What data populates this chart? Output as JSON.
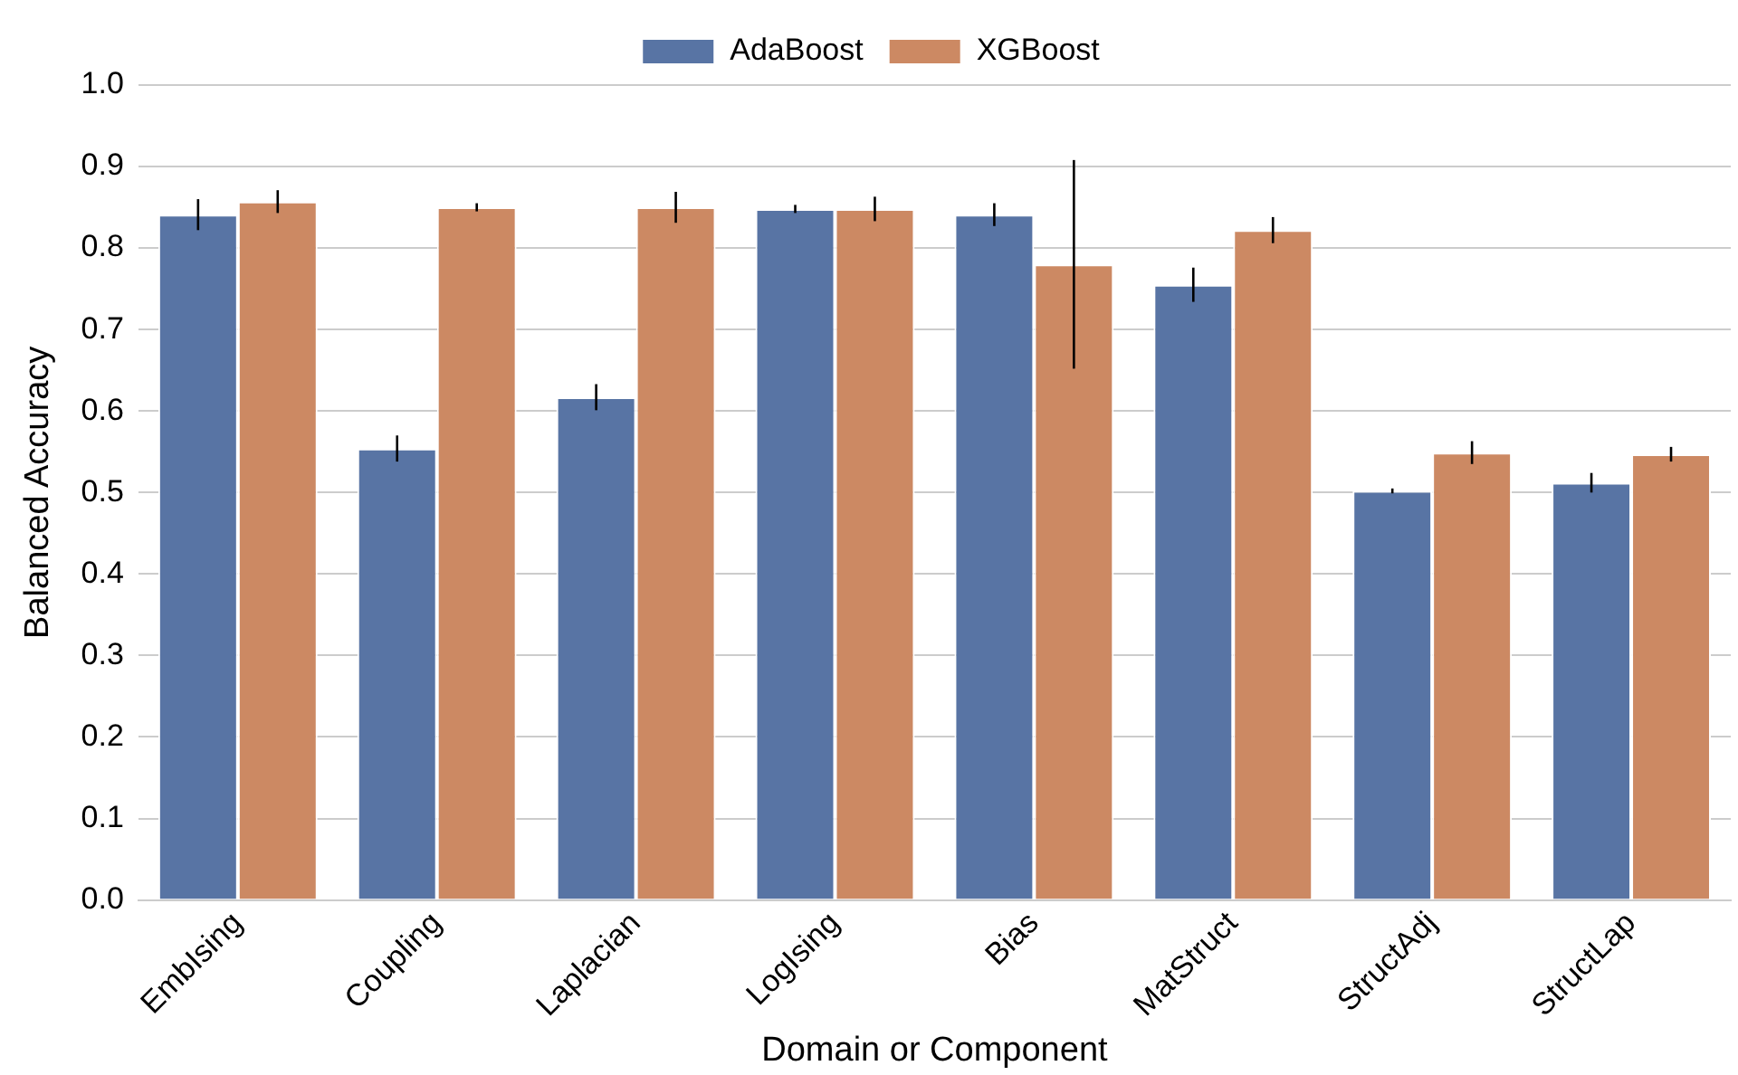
{
  "chart_data": {
    "type": "bar",
    "xlabel": "Domain or Component",
    "ylabel": "Balanced Accuracy",
    "categories": [
      "EmbIsing",
      "Coupling",
      "Laplacian",
      "LogIsing",
      "Bias",
      "MatStruct",
      "StructAdj",
      "StructLap"
    ],
    "series": [
      {
        "name": "AdaBoost",
        "color": "#5874a4",
        "values": [
          0.841,
          0.554,
          0.617,
          0.848,
          0.841,
          0.755,
          0.502,
          0.512
        ],
        "errors": [
          0.019,
          0.016,
          0.016,
          0.005,
          0.014,
          0.021,
          0.003,
          0.012
        ]
      },
      {
        "name": "XGBoost",
        "color": "#cc8963",
        "values": [
          0.857,
          0.85,
          0.85,
          0.848,
          0.78,
          0.822,
          0.549,
          0.547
        ],
        "errors": [
          0.014,
          0.005,
          0.019,
          0.015,
          0.128,
          0.016,
          0.014,
          0.009
        ]
      }
    ],
    "ylim": [
      0,
      1
    ],
    "yticks": [
      {
        "value": 0,
        "label": "0.0"
      },
      0.1,
      0.2,
      0.3,
      0.4,
      0.5,
      0.6,
      0.7,
      0.8,
      0.9,
      {
        "value": 1,
        "label": "1.0"
      }
    ],
    "grid": "y",
    "legend": "top"
  }
}
